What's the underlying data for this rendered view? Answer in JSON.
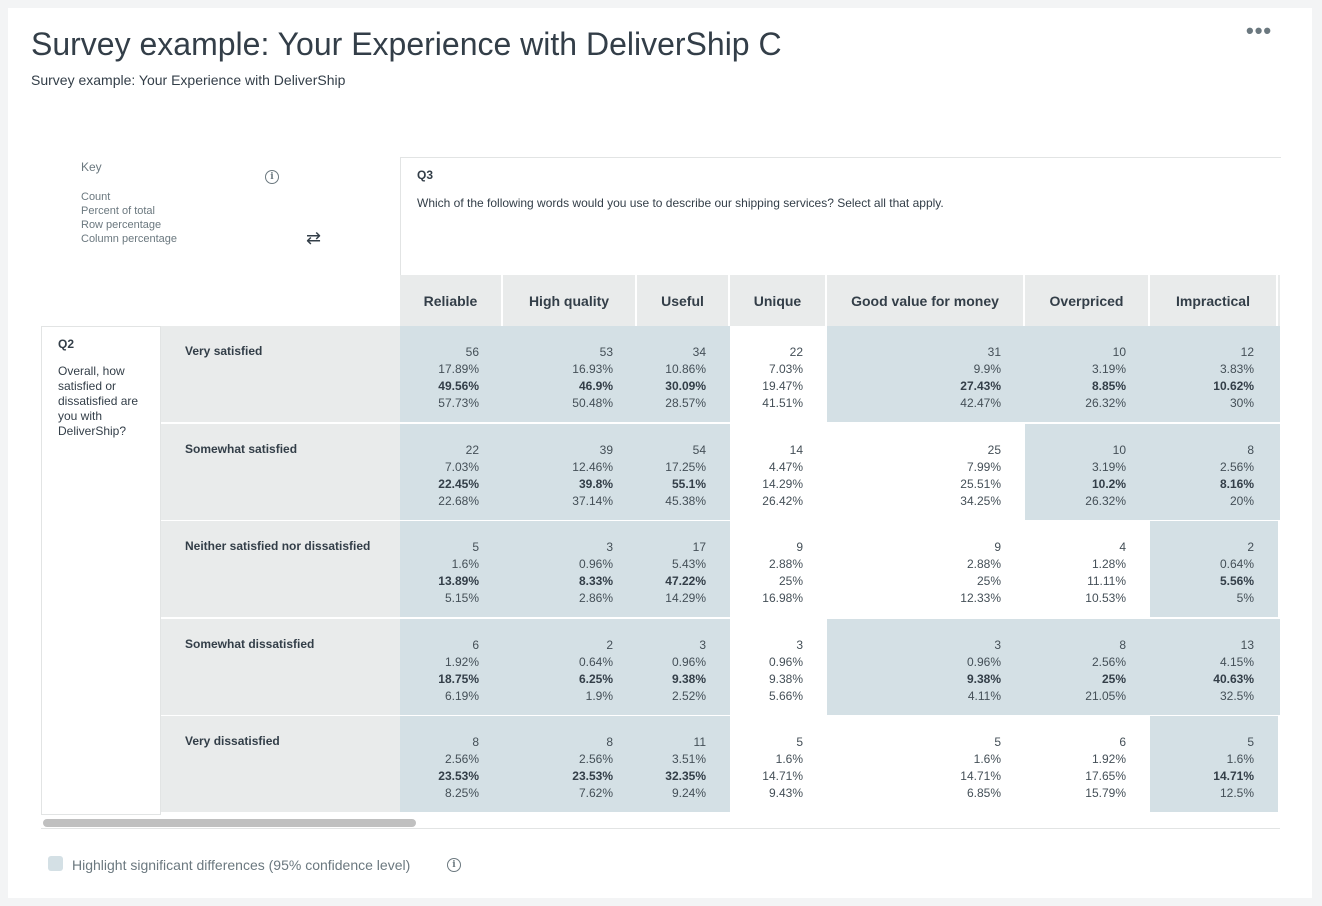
{
  "header": {
    "title": "Survey example: Your Experience with DeliverShip C",
    "subtitle": "Survey example: Your Experience with DeliverShip",
    "more_icon": "•••"
  },
  "key": {
    "title": "Key",
    "items": [
      "Count",
      "Percent of total",
      "Row percentage",
      "Column percentage"
    ],
    "info_icon": "i",
    "swap_icon": "⇄"
  },
  "q3": {
    "id": "Q3",
    "text": "Which of the following words would you use to describe our shipping services? Select all that apply.",
    "columns": [
      "Reliable",
      "High quality",
      "Useful",
      "Unique",
      "Good value for money",
      "Overpriced",
      "Impractical"
    ]
  },
  "q2": {
    "id": "Q2",
    "text": "Overall, how satisfied or dissatisfied are you with DeliverShip?"
  },
  "colors": {
    "highlight": "#d4e0e5",
    "header": "#e9ebeb"
  },
  "rows": [
    {
      "label": "Very satisfied",
      "cells": [
        {
          "count": "56",
          "total": "17.89%",
          "row": "49.56%",
          "col": "57.73%",
          "highlight": true
        },
        {
          "count": "53",
          "total": "16.93%",
          "row": "46.9%",
          "col": "50.48%",
          "highlight": true
        },
        {
          "count": "34",
          "total": "10.86%",
          "row": "30.09%",
          "col": "28.57%",
          "highlight": true
        },
        {
          "count": "22",
          "total": "7.03%",
          "row": "19.47%",
          "col": "41.51%",
          "highlight": false
        },
        {
          "count": "31",
          "total": "9.9%",
          "row": "27.43%",
          "col": "42.47%",
          "highlight": true
        },
        {
          "count": "10",
          "total": "3.19%",
          "row": "8.85%",
          "col": "26.32%",
          "highlight": true
        },
        {
          "count": "12",
          "total": "3.83%",
          "row": "10.62%",
          "col": "30%",
          "highlight": true
        }
      ]
    },
    {
      "label": "Somewhat satisfied",
      "cells": [
        {
          "count": "22",
          "total": "7.03%",
          "row": "22.45%",
          "col": "22.68%",
          "highlight": true
        },
        {
          "count": "39",
          "total": "12.46%",
          "row": "39.8%",
          "col": "37.14%",
          "highlight": true
        },
        {
          "count": "54",
          "total": "17.25%",
          "row": "55.1%",
          "col": "45.38%",
          "highlight": true
        },
        {
          "count": "14",
          "total": "4.47%",
          "row": "14.29%",
          "col": "26.42%",
          "highlight": false
        },
        {
          "count": "25",
          "total": "7.99%",
          "row": "25.51%",
          "col": "34.25%",
          "highlight": false
        },
        {
          "count": "10",
          "total": "3.19%",
          "row": "10.2%",
          "col": "26.32%",
          "highlight": true
        },
        {
          "count": "8",
          "total": "2.56%",
          "row": "8.16%",
          "col": "20%",
          "highlight": true
        }
      ]
    },
    {
      "label": "Neither satisfied nor dissatisfied",
      "cells": [
        {
          "count": "5",
          "total": "1.6%",
          "row": "13.89%",
          "col": "5.15%",
          "highlight": true
        },
        {
          "count": "3",
          "total": "0.96%",
          "row": "8.33%",
          "col": "2.86%",
          "highlight": true
        },
        {
          "count": "17",
          "total": "5.43%",
          "row": "47.22%",
          "col": "14.29%",
          "highlight": true
        },
        {
          "count": "9",
          "total": "2.88%",
          "row": "25%",
          "col": "16.98%",
          "highlight": false
        },
        {
          "count": "9",
          "total": "2.88%",
          "row": "25%",
          "col": "12.33%",
          "highlight": false
        },
        {
          "count": "4",
          "total": "1.28%",
          "row": "11.11%",
          "col": "10.53%",
          "highlight": false
        },
        {
          "count": "2",
          "total": "0.64%",
          "row": "5.56%",
          "col": "5%",
          "highlight": true
        }
      ]
    },
    {
      "label": "Somewhat dissatisfied",
      "cells": [
        {
          "count": "6",
          "total": "1.92%",
          "row": "18.75%",
          "col": "6.19%",
          "highlight": true
        },
        {
          "count": "2",
          "total": "0.64%",
          "row": "6.25%",
          "col": "1.9%",
          "highlight": true
        },
        {
          "count": "3",
          "total": "0.96%",
          "row": "9.38%",
          "col": "2.52%",
          "highlight": true
        },
        {
          "count": "3",
          "total": "0.96%",
          "row": "9.38%",
          "col": "5.66%",
          "highlight": false
        },
        {
          "count": "3",
          "total": "0.96%",
          "row": "9.38%",
          "col": "4.11%",
          "highlight": true
        },
        {
          "count": "8",
          "total": "2.56%",
          "row": "25%",
          "col": "21.05%",
          "highlight": true
        },
        {
          "count": "13",
          "total": "4.15%",
          "row": "40.63%",
          "col": "32.5%",
          "highlight": true
        }
      ]
    },
    {
      "label": "Very dissatisfied",
      "cells": [
        {
          "count": "8",
          "total": "2.56%",
          "row": "23.53%",
          "col": "8.25%",
          "highlight": true
        },
        {
          "count": "8",
          "total": "2.56%",
          "row": "23.53%",
          "col": "7.62%",
          "highlight": true
        },
        {
          "count": "11",
          "total": "3.51%",
          "row": "32.35%",
          "col": "9.24%",
          "highlight": true
        },
        {
          "count": "5",
          "total": "1.6%",
          "row": "14.71%",
          "col": "9.43%",
          "highlight": false
        },
        {
          "count": "5",
          "total": "1.6%",
          "row": "14.71%",
          "col": "6.85%",
          "highlight": false
        },
        {
          "count": "6",
          "total": "1.92%",
          "row": "17.65%",
          "col": "15.79%",
          "highlight": false
        },
        {
          "count": "5",
          "total": "1.6%",
          "row": "14.71%",
          "col": "12.5%",
          "highlight": true
        }
      ]
    }
  ],
  "footer": {
    "checkbox_label": "Highlight significant differences (95% confidence level)",
    "checked": false
  }
}
